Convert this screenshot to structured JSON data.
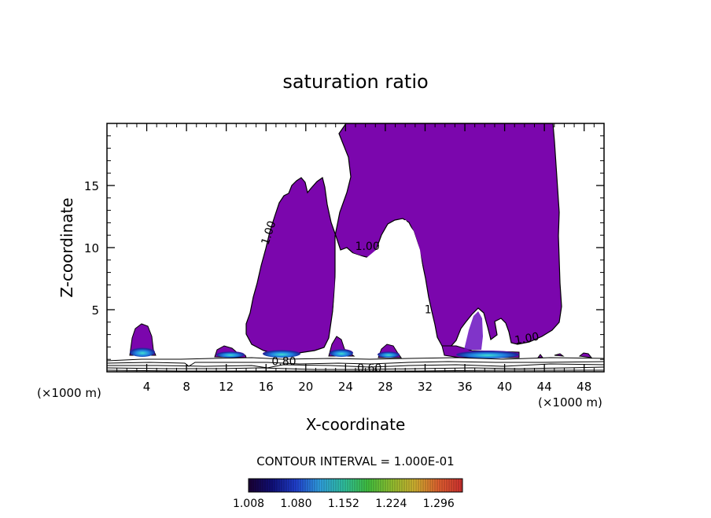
{
  "chart_data": {
    "type": "heatmap",
    "title": "saturation ratio",
    "xlabel": "X-coordinate",
    "ylabel": "Z-coordinate",
    "x_units_left": "(×1000 m)",
    "x_units_right": "(×1000 m)",
    "xlim": [
      0,
      50
    ],
    "ylim": [
      0,
      20
    ],
    "x_ticks": [
      4,
      8,
      12,
      16,
      20,
      24,
      28,
      32,
      36,
      40,
      44,
      48
    ],
    "x_tick_labels": [
      "4",
      "8",
      "12",
      "16",
      "20",
      "24",
      "28",
      "32",
      "36",
      "40",
      "44",
      "48"
    ],
    "y_ticks": [
      5,
      10,
      15
    ],
    "y_tick_labels": [
      "5",
      "10",
      "15"
    ],
    "fill_color": "#7b06ad",
    "contour_labels": [
      {
        "text": "1.00",
        "x": 16.6,
        "y": 11.1,
        "angle": -72
      },
      {
        "text": "1.00",
        "x": 26.2,
        "y": 9.8,
        "angle": 0
      },
      {
        "text": "1",
        "x": 32.3,
        "y": 4.7,
        "angle": 0
      },
      {
        "text": "1.00",
        "x": 42.3,
        "y": 2.4,
        "angle": -10
      },
      {
        "text": "0.80",
        "x": 17.8,
        "y": 0.55,
        "angle": 0
      },
      {
        "text": "0.60",
        "x": 26.4,
        "y": 0.0,
        "angle": 0
      }
    ],
    "contour_interval_text": "CONTOUR INTERVAL = 1.000E-01",
    "colorbar": {
      "min": 1.008,
      "max": 1.332,
      "tick_labels": [
        "1.008",
        "1.080",
        "1.152",
        "1.224",
        "1.296"
      ],
      "colors": [
        "#1a0033",
        "#10107a",
        "#2040d0",
        "#30a0e0",
        "#30c0a0",
        "#40c040",
        "#90c030",
        "#d0b030",
        "#e06030",
        "#d03030"
      ]
    }
  }
}
